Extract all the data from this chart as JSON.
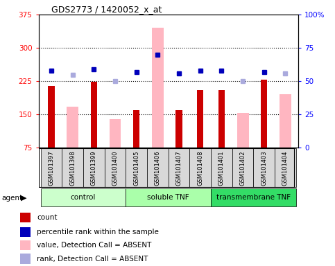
{
  "title": "GDS2773 / 1420052_x_at",
  "samples": [
    "GSM101397",
    "GSM101398",
    "GSM101399",
    "GSM101400",
    "GSM101405",
    "GSM101406",
    "GSM101407",
    "GSM101408",
    "GSM101401",
    "GSM101402",
    "GSM101403",
    "GSM101404"
  ],
  "group_labels": [
    "control",
    "soluble TNF",
    "transmembrane TNF"
  ],
  "group_ranges": [
    [
      0,
      3
    ],
    [
      4,
      7
    ],
    [
      8,
      11
    ]
  ],
  "red_bars": [
    215,
    null,
    223,
    null,
    160,
    null,
    160,
    205,
    205,
    null,
    228,
    null
  ],
  "pink_bars": [
    null,
    168,
    null,
    140,
    null,
    345,
    null,
    null,
    null,
    153,
    null,
    195
  ],
  "blue_squares": [
    58,
    null,
    59,
    null,
    57,
    70,
    56,
    58,
    58,
    null,
    57,
    null
  ],
  "lavender_squares": [
    null,
    55,
    null,
    50,
    null,
    null,
    null,
    null,
    null,
    50,
    null,
    56
  ],
  "ylim_left": [
    75,
    375
  ],
  "ylim_right": [
    0,
    100
  ],
  "yticks_left": [
    75,
    150,
    225,
    300,
    375
  ],
  "yticks_right": [
    0,
    25,
    50,
    75,
    100
  ],
  "yticklabels_left": [
    "75",
    "150",
    "225",
    "300",
    "375"
  ],
  "yticklabels_right": [
    "0",
    "25",
    "50",
    "75",
    "100%"
  ],
  "red_bar_color": "#cc0000",
  "pink_bar_color": "#ffb6c1",
  "blue_square_color": "#0000bb",
  "lavender_square_color": "#aaaadd",
  "group_colors": [
    "#ccffcc",
    "#aaffaa",
    "#33dd66"
  ],
  "legend_items": [
    {
      "color": "#cc0000",
      "label": "count",
      "type": "rect"
    },
    {
      "color": "#0000bb",
      "label": "percentile rank within the sample",
      "type": "rect"
    },
    {
      "color": "#ffb6c1",
      "label": "value, Detection Call = ABSENT",
      "type": "rect"
    },
    {
      "color": "#aaaadd",
      "label": "rank, Detection Call = ABSENT",
      "type": "rect"
    }
  ]
}
